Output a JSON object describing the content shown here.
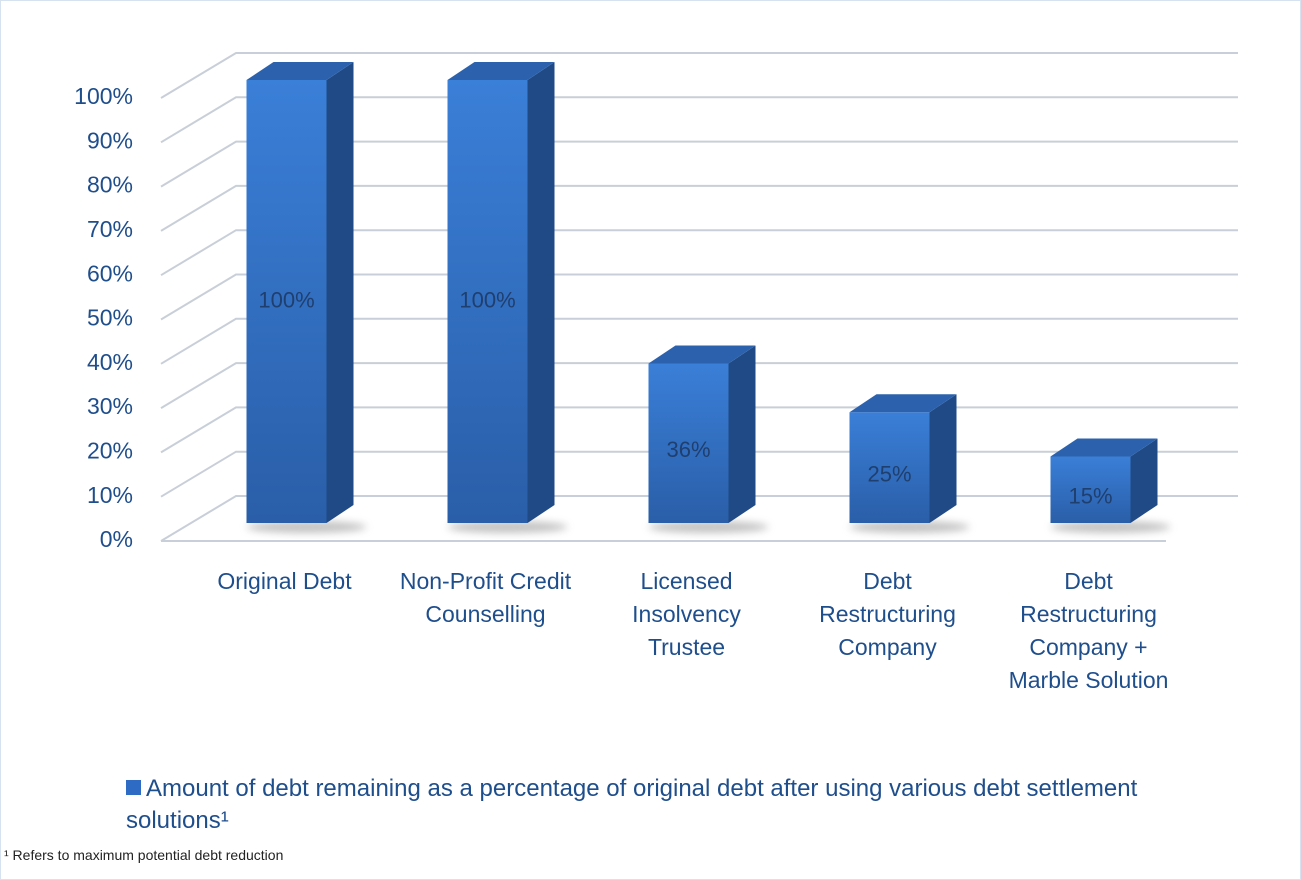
{
  "chart_data": {
    "type": "bar3d",
    "categories": [
      "Original Debt",
      "Non-Profit Credit Counselling",
      "Licensed Insolvency Trustee",
      "Debt Restructuring Company",
      "Debt Restructuring Company + Marble Solution"
    ],
    "series": [
      {
        "name": "Amount of debt remaining as a percentage of original debt after using various debt settlement solutions¹",
        "color": "#2e6bc4",
        "values": [
          100,
          100,
          36,
          25,
          15
        ],
        "value_labels": [
          "100%",
          "100%",
          "36%",
          "25%",
          "15%"
        ]
      }
    ],
    "ylim": [
      0,
      100
    ],
    "yticks": [
      {
        "value": 0,
        "label": "0%"
      },
      {
        "value": 10,
        "label": "10%"
      },
      {
        "value": 20,
        "label": "20%"
      },
      {
        "value": 30,
        "label": "30%"
      },
      {
        "value": 40,
        "label": "40%"
      },
      {
        "value": 50,
        "label": "50%"
      },
      {
        "value": 60,
        "label": "60%"
      },
      {
        "value": 70,
        "label": "70%"
      },
      {
        "value": 80,
        "label": "80%"
      },
      {
        "value": 90,
        "label": "90%"
      },
      {
        "value": 100,
        "label": "100%"
      }
    ],
    "grid": true,
    "legend": "bottom",
    "footnote": "¹ Refers to maximum potential debt reduction"
  }
}
